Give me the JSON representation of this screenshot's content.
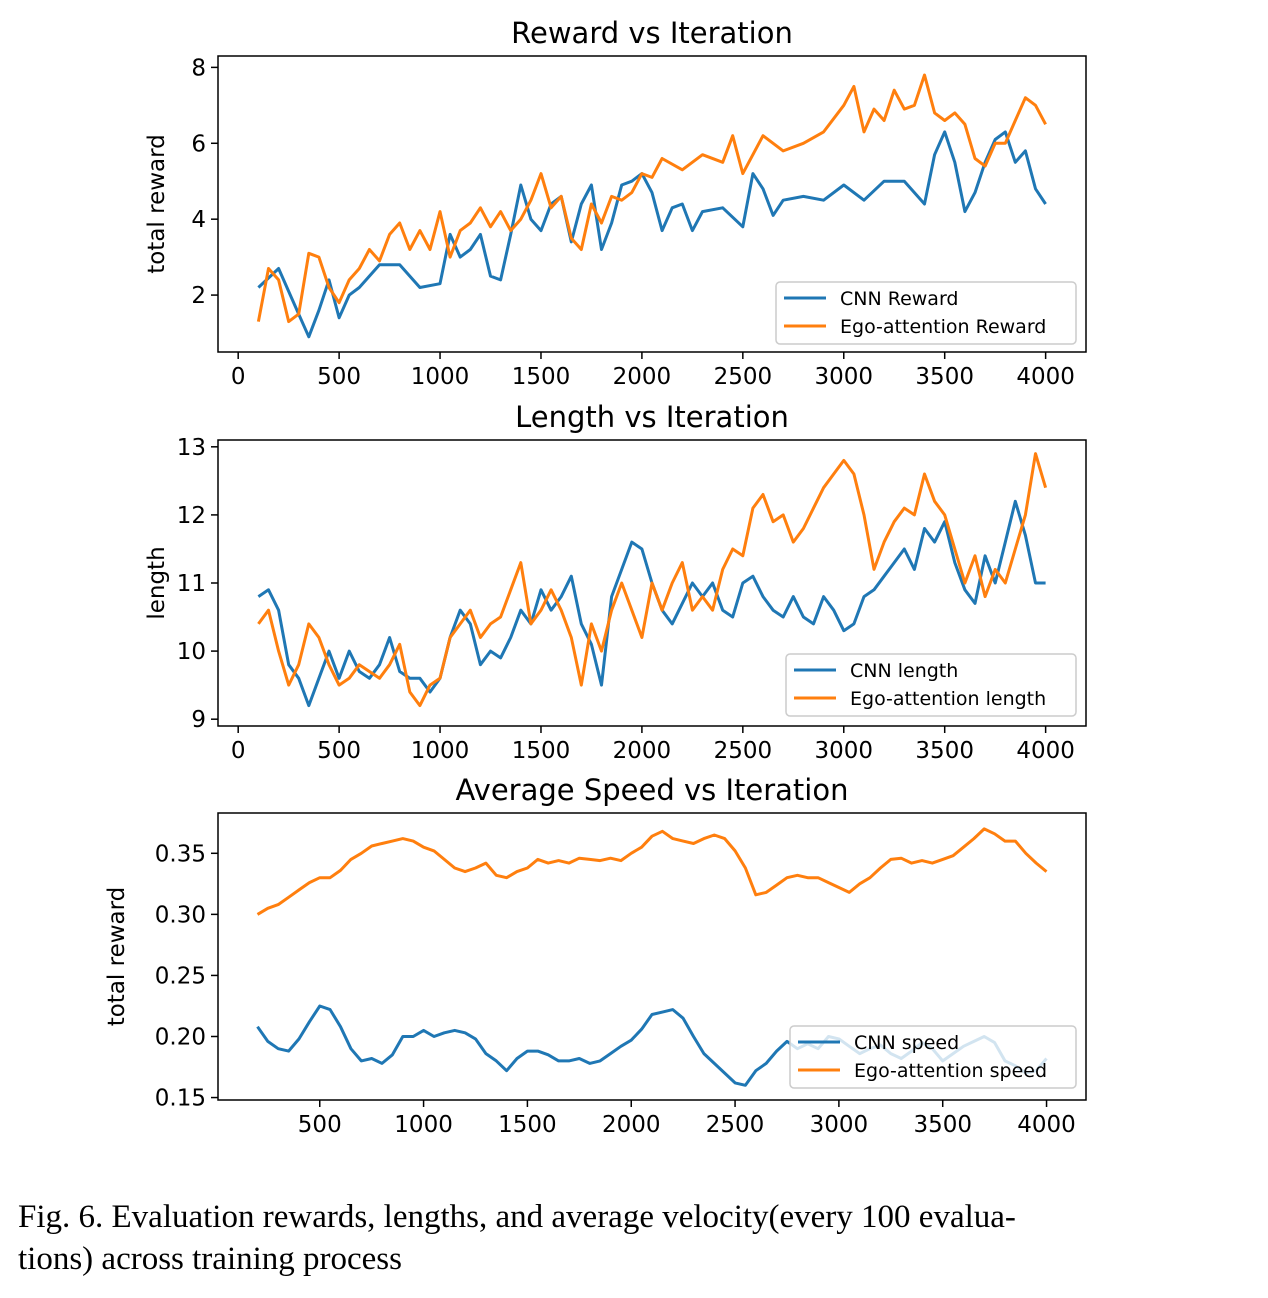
{
  "colors": {
    "cnn": "#1f77b4",
    "ego": "#ff7f0e"
  },
  "chart_data": [
    {
      "type": "line",
      "title": "Reward vs Iteration",
      "xlabel": "",
      "ylabel": "total reward",
      "xlim": [
        -100,
        4200
      ],
      "ylim": [
        0.5,
        8.3
      ],
      "xticks": [
        0,
        500,
        1000,
        1500,
        2000,
        2500,
        3000,
        3500,
        4000
      ],
      "yticks": [
        2,
        4,
        6,
        8
      ],
      "legend_position": "bottom-right",
      "series": [
        {
          "name": "CNN Reward",
          "color": "#1f77b4",
          "x": [
            100,
            200,
            300,
            350,
            400,
            450,
            500,
            550,
            600,
            700,
            800,
            900,
            1000,
            1050,
            1100,
            1150,
            1200,
            1250,
            1300,
            1350,
            1400,
            1450,
            1500,
            1550,
            1600,
            1650,
            1700,
            1750,
            1800,
            1850,
            1900,
            1950,
            2000,
            2050,
            2100,
            2150,
            2200,
            2250,
            2300,
            2400,
            2500,
            2550,
            2600,
            2650,
            2700,
            2800,
            2900,
            3000,
            3100,
            3200,
            3300,
            3400,
            3450,
            3500,
            3550,
            3600,
            3650,
            3700,
            3750,
            3800,
            3850,
            3900,
            3950,
            4000
          ],
          "y": [
            2.2,
            2.7,
            1.5,
            0.9,
            1.6,
            2.4,
            1.4,
            2.0,
            2.2,
            2.8,
            2.8,
            2.2,
            2.3,
            3.6,
            3.0,
            3.2,
            3.6,
            2.5,
            2.4,
            3.6,
            4.9,
            4.0,
            3.7,
            4.4,
            4.6,
            3.4,
            4.4,
            4.9,
            3.2,
            3.9,
            4.9,
            5.0,
            5.2,
            4.7,
            3.7,
            4.3,
            4.4,
            3.7,
            4.2,
            4.3,
            3.8,
            5.2,
            4.8,
            4.1,
            4.5,
            4.6,
            4.5,
            4.9,
            4.5,
            5.0,
            5.0,
            4.4,
            5.7,
            6.3,
            5.5,
            4.2,
            4.7,
            5.5,
            6.1,
            6.3,
            5.5,
            5.8,
            4.8,
            4.4
          ]
        },
        {
          "name": "Ego-attention Reward",
          "color": "#ff7f0e",
          "x": [
            100,
            150,
            200,
            250,
            300,
            350,
            400,
            450,
            500,
            550,
            600,
            650,
            700,
            750,
            800,
            850,
            900,
            950,
            1000,
            1050,
            1100,
            1150,
            1200,
            1250,
            1300,
            1350,
            1400,
            1450,
            1500,
            1550,
            1600,
            1650,
            1700,
            1750,
            1800,
            1850,
            1900,
            1950,
            2000,
            2050,
            2100,
            2200,
            2300,
            2400,
            2450,
            2500,
            2600,
            2700,
            2800,
            2900,
            3000,
            3050,
            3100,
            3150,
            3200,
            3250,
            3300,
            3350,
            3400,
            3450,
            3500,
            3550,
            3600,
            3650,
            3700,
            3750,
            3800,
            3850,
            3900,
            3950,
            4000
          ],
          "y": [
            1.3,
            2.7,
            2.4,
            1.3,
            1.5,
            3.1,
            3.0,
            2.2,
            1.8,
            2.4,
            2.7,
            3.2,
            2.9,
            3.6,
            3.9,
            3.2,
            3.7,
            3.2,
            4.2,
            3.0,
            3.7,
            3.9,
            4.3,
            3.8,
            4.2,
            3.7,
            4.0,
            4.5,
            5.2,
            4.3,
            4.6,
            3.5,
            3.2,
            4.4,
            3.9,
            4.6,
            4.5,
            4.7,
            5.2,
            5.1,
            5.6,
            5.3,
            5.7,
            5.5,
            6.2,
            5.2,
            6.2,
            5.8,
            6.0,
            6.3,
            7.0,
            7.5,
            6.3,
            6.9,
            6.6,
            7.4,
            6.9,
            7.0,
            7.8,
            6.8,
            6.6,
            6.8,
            6.5,
            5.6,
            5.4,
            6.0,
            6.0,
            6.6,
            7.2,
            7.0,
            6.5
          ]
        }
      ]
    },
    {
      "type": "line",
      "title": "Length vs Iteration",
      "xlabel": "",
      "ylabel": "length",
      "xlim": [
        -100,
        4200
      ],
      "ylim": [
        8.9,
        13.1
      ],
      "xticks": [
        0,
        500,
        1000,
        1500,
        2000,
        2500,
        3000,
        3500,
        4000
      ],
      "yticks": [
        9,
        10,
        11,
        12,
        13
      ],
      "legend_position": "bottom-right",
      "series": [
        {
          "name": "CNN length",
          "color": "#1f77b4",
          "x": [
            100,
            150,
            200,
            250,
            300,
            350,
            400,
            450,
            500,
            550,
            600,
            650,
            700,
            750,
            800,
            850,
            900,
            950,
            1000,
            1050,
            1100,
            1150,
            1200,
            1250,
            1300,
            1350,
            1400,
            1450,
            1500,
            1550,
            1600,
            1650,
            1700,
            1750,
            1800,
            1850,
            1900,
            1950,
            2000,
            2050,
            2100,
            2150,
            2200,
            2250,
            2300,
            2350,
            2400,
            2450,
            2500,
            2550,
            2600,
            2650,
            2700,
            2750,
            2800,
            2850,
            2900,
            2950,
            3000,
            3050,
            3100,
            3150,
            3200,
            3250,
            3300,
            3350,
            3400,
            3450,
            3500,
            3550,
            3600,
            3650,
            3700,
            3750,
            3800,
            3850,
            3900,
            3950,
            4000
          ],
          "y": [
            10.8,
            10.9,
            10.6,
            9.8,
            9.6,
            9.2,
            9.6,
            10.0,
            9.6,
            10.0,
            9.7,
            9.6,
            9.8,
            10.2,
            9.7,
            9.6,
            9.6,
            9.4,
            9.6,
            10.2,
            10.6,
            10.4,
            9.8,
            10.0,
            9.9,
            10.2,
            10.6,
            10.4,
            10.9,
            10.6,
            10.8,
            11.1,
            10.4,
            10.1,
            9.5,
            10.8,
            11.2,
            11.6,
            11.5,
            11.0,
            10.6,
            10.4,
            10.7,
            11.0,
            10.8,
            11.0,
            10.6,
            10.5,
            11.0,
            11.1,
            10.8,
            10.6,
            10.5,
            10.8,
            10.5,
            10.4,
            10.8,
            10.6,
            10.3,
            10.4,
            10.8,
            10.9,
            11.1,
            11.3,
            11.5,
            11.2,
            11.8,
            11.6,
            11.9,
            11.3,
            10.9,
            10.7,
            11.4,
            11.0,
            11.6,
            12.2,
            11.7,
            11.0,
            11.0
          ]
        },
        {
          "name": "Ego-attention length",
          "color": "#ff7f0e",
          "x": [
            100,
            150,
            200,
            250,
            300,
            350,
            400,
            450,
            500,
            550,
            600,
            650,
            700,
            750,
            800,
            850,
            900,
            950,
            1000,
            1050,
            1100,
            1150,
            1200,
            1250,
            1300,
            1350,
            1400,
            1450,
            1500,
            1550,
            1600,
            1650,
            1700,
            1750,
            1800,
            1850,
            1900,
            1950,
            2000,
            2050,
            2100,
            2150,
            2200,
            2250,
            2300,
            2350,
            2400,
            2450,
            2500,
            2550,
            2600,
            2650,
            2700,
            2750,
            2800,
            2850,
            2900,
            2950,
            3000,
            3050,
            3100,
            3150,
            3200,
            3250,
            3300,
            3350,
            3400,
            3450,
            3500,
            3550,
            3600,
            3650,
            3700,
            3750,
            3800,
            3850,
            3900,
            3950,
            4000
          ],
          "y": [
            10.4,
            10.6,
            10.0,
            9.5,
            9.8,
            10.4,
            10.2,
            9.8,
            9.5,
            9.6,
            9.8,
            9.7,
            9.6,
            9.8,
            10.1,
            9.4,
            9.2,
            9.5,
            9.6,
            10.2,
            10.4,
            10.6,
            10.2,
            10.4,
            10.5,
            10.9,
            11.3,
            10.4,
            10.6,
            10.9,
            10.6,
            10.2,
            9.5,
            10.4,
            10.0,
            10.6,
            11.0,
            10.6,
            10.2,
            11.0,
            10.6,
            11.0,
            11.3,
            10.6,
            10.8,
            10.6,
            11.2,
            11.5,
            11.4,
            12.1,
            12.3,
            11.9,
            12.0,
            11.6,
            11.8,
            12.1,
            12.4,
            12.6,
            12.8,
            12.6,
            12.0,
            11.2,
            11.6,
            11.9,
            12.1,
            12.0,
            12.6,
            12.2,
            12.0,
            11.5,
            11.0,
            11.4,
            10.8,
            11.2,
            11.0,
            11.5,
            12.0,
            12.9,
            12.4
          ]
        }
      ]
    },
    {
      "type": "line",
      "title": "Average Speed vs Iteration",
      "xlabel": "",
      "ylabel": "total reward",
      "xlim": [
        10,
        4190
      ],
      "ylim": [
        0.148,
        0.383
      ],
      "xticks": [
        500,
        1000,
        1500,
        2000,
        2500,
        3000,
        3500,
        4000
      ],
      "yticks": [
        0.15,
        0.2,
        0.25,
        0.3,
        0.35
      ],
      "ytick_labels": [
        "0.15",
        "0.20",
        "0.25",
        "0.30",
        "0.35"
      ],
      "legend_position": "bottom-right",
      "series": [
        {
          "name": "CNN speed",
          "color": "#1f77b4",
          "x": [
            200,
            250,
            300,
            350,
            400,
            450,
            500,
            550,
            600,
            650,
            700,
            750,
            800,
            850,
            900,
            950,
            1000,
            1050,
            1100,
            1150,
            1200,
            1250,
            1300,
            1350,
            1400,
            1450,
            1500,
            1550,
            1600,
            1650,
            1700,
            1750,
            1800,
            1850,
            1900,
            1950,
            2000,
            2050,
            2100,
            2150,
            2200,
            2250,
            2300,
            2350,
            2400,
            2450,
            2500,
            2550,
            2600,
            2650,
            2700,
            2750,
            2800,
            2850,
            2900,
            2950,
            3000,
            3050,
            3100,
            3150,
            3200,
            3250,
            3300,
            3350,
            3400,
            3450,
            3500,
            3550,
            3600,
            3650,
            3700,
            3750,
            3800,
            3850,
            3900,
            3950,
            4000
          ],
          "y": [
            0.208,
            0.196,
            0.19,
            0.188,
            0.198,
            0.212,
            0.225,
            0.222,
            0.208,
            0.19,
            0.18,
            0.182,
            0.178,
            0.185,
            0.2,
            0.2,
            0.205,
            0.2,
            0.203,
            0.205,
            0.203,
            0.198,
            0.186,
            0.18,
            0.172,
            0.182,
            0.188,
            0.188,
            0.185,
            0.18,
            0.18,
            0.182,
            0.178,
            0.18,
            0.186,
            0.192,
            0.197,
            0.206,
            0.218,
            0.22,
            0.222,
            0.215,
            0.2,
            0.186,
            0.178,
            0.17,
            0.162,
            0.16,
            0.172,
            0.178,
            0.188,
            0.196,
            0.19,
            0.194,
            0.19,
            0.2,
            0.198,
            0.192,
            0.186,
            0.19,
            0.193,
            0.186,
            0.182,
            0.188,
            0.195,
            0.19,
            0.18,
            0.186,
            0.192,
            0.196,
            0.2,
            0.195,
            0.18,
            0.176,
            0.17,
            0.172,
            0.182
          ]
        },
        {
          "name": "Ego-attention speed",
          "color": "#ff7f0e",
          "x": [
            200,
            250,
            300,
            350,
            400,
            450,
            500,
            550,
            600,
            650,
            700,
            750,
            800,
            850,
            900,
            950,
            1000,
            1050,
            1100,
            1150,
            1200,
            1250,
            1300,
            1350,
            1400,
            1450,
            1500,
            1550,
            1600,
            1650,
            1700,
            1750,
            1800,
            1850,
            1900,
            1950,
            2000,
            2050,
            2100,
            2150,
            2200,
            2250,
            2300,
            2350,
            2400,
            2450,
            2500,
            2550,
            2600,
            2650,
            2700,
            2750,
            2800,
            2850,
            2900,
            2950,
            3000,
            3050,
            3100,
            3150,
            3200,
            3250,
            3300,
            3350,
            3400,
            3450,
            3500,
            3550,
            3600,
            3650,
            3700,
            3750,
            3800,
            3850,
            3900,
            3950,
            4000
          ],
          "y": [
            0.3,
            0.305,
            0.308,
            0.314,
            0.32,
            0.326,
            0.33,
            0.33,
            0.336,
            0.345,
            0.35,
            0.356,
            0.358,
            0.36,
            0.362,
            0.36,
            0.355,
            0.352,
            0.345,
            0.338,
            0.335,
            0.338,
            0.342,
            0.332,
            0.33,
            0.335,
            0.338,
            0.345,
            0.342,
            0.344,
            0.342,
            0.346,
            0.345,
            0.344,
            0.346,
            0.344,
            0.35,
            0.355,
            0.364,
            0.368,
            0.362,
            0.36,
            0.358,
            0.362,
            0.365,
            0.362,
            0.352,
            0.338,
            0.316,
            0.318,
            0.324,
            0.33,
            0.332,
            0.33,
            0.33,
            0.326,
            0.322,
            0.318,
            0.325,
            0.33,
            0.338,
            0.345,
            0.346,
            0.342,
            0.344,
            0.342,
            0.345,
            0.348,
            0.355,
            0.362,
            0.37,
            0.366,
            0.36,
            0.36,
            0.35,
            0.342,
            0.335
          ]
        }
      ]
    }
  ],
  "caption": {
    "line1": "Fig. 6.  Evaluation rewards, lengths, and average velocity(every 100 evalua-",
    "line2": "tions) across training process"
  }
}
